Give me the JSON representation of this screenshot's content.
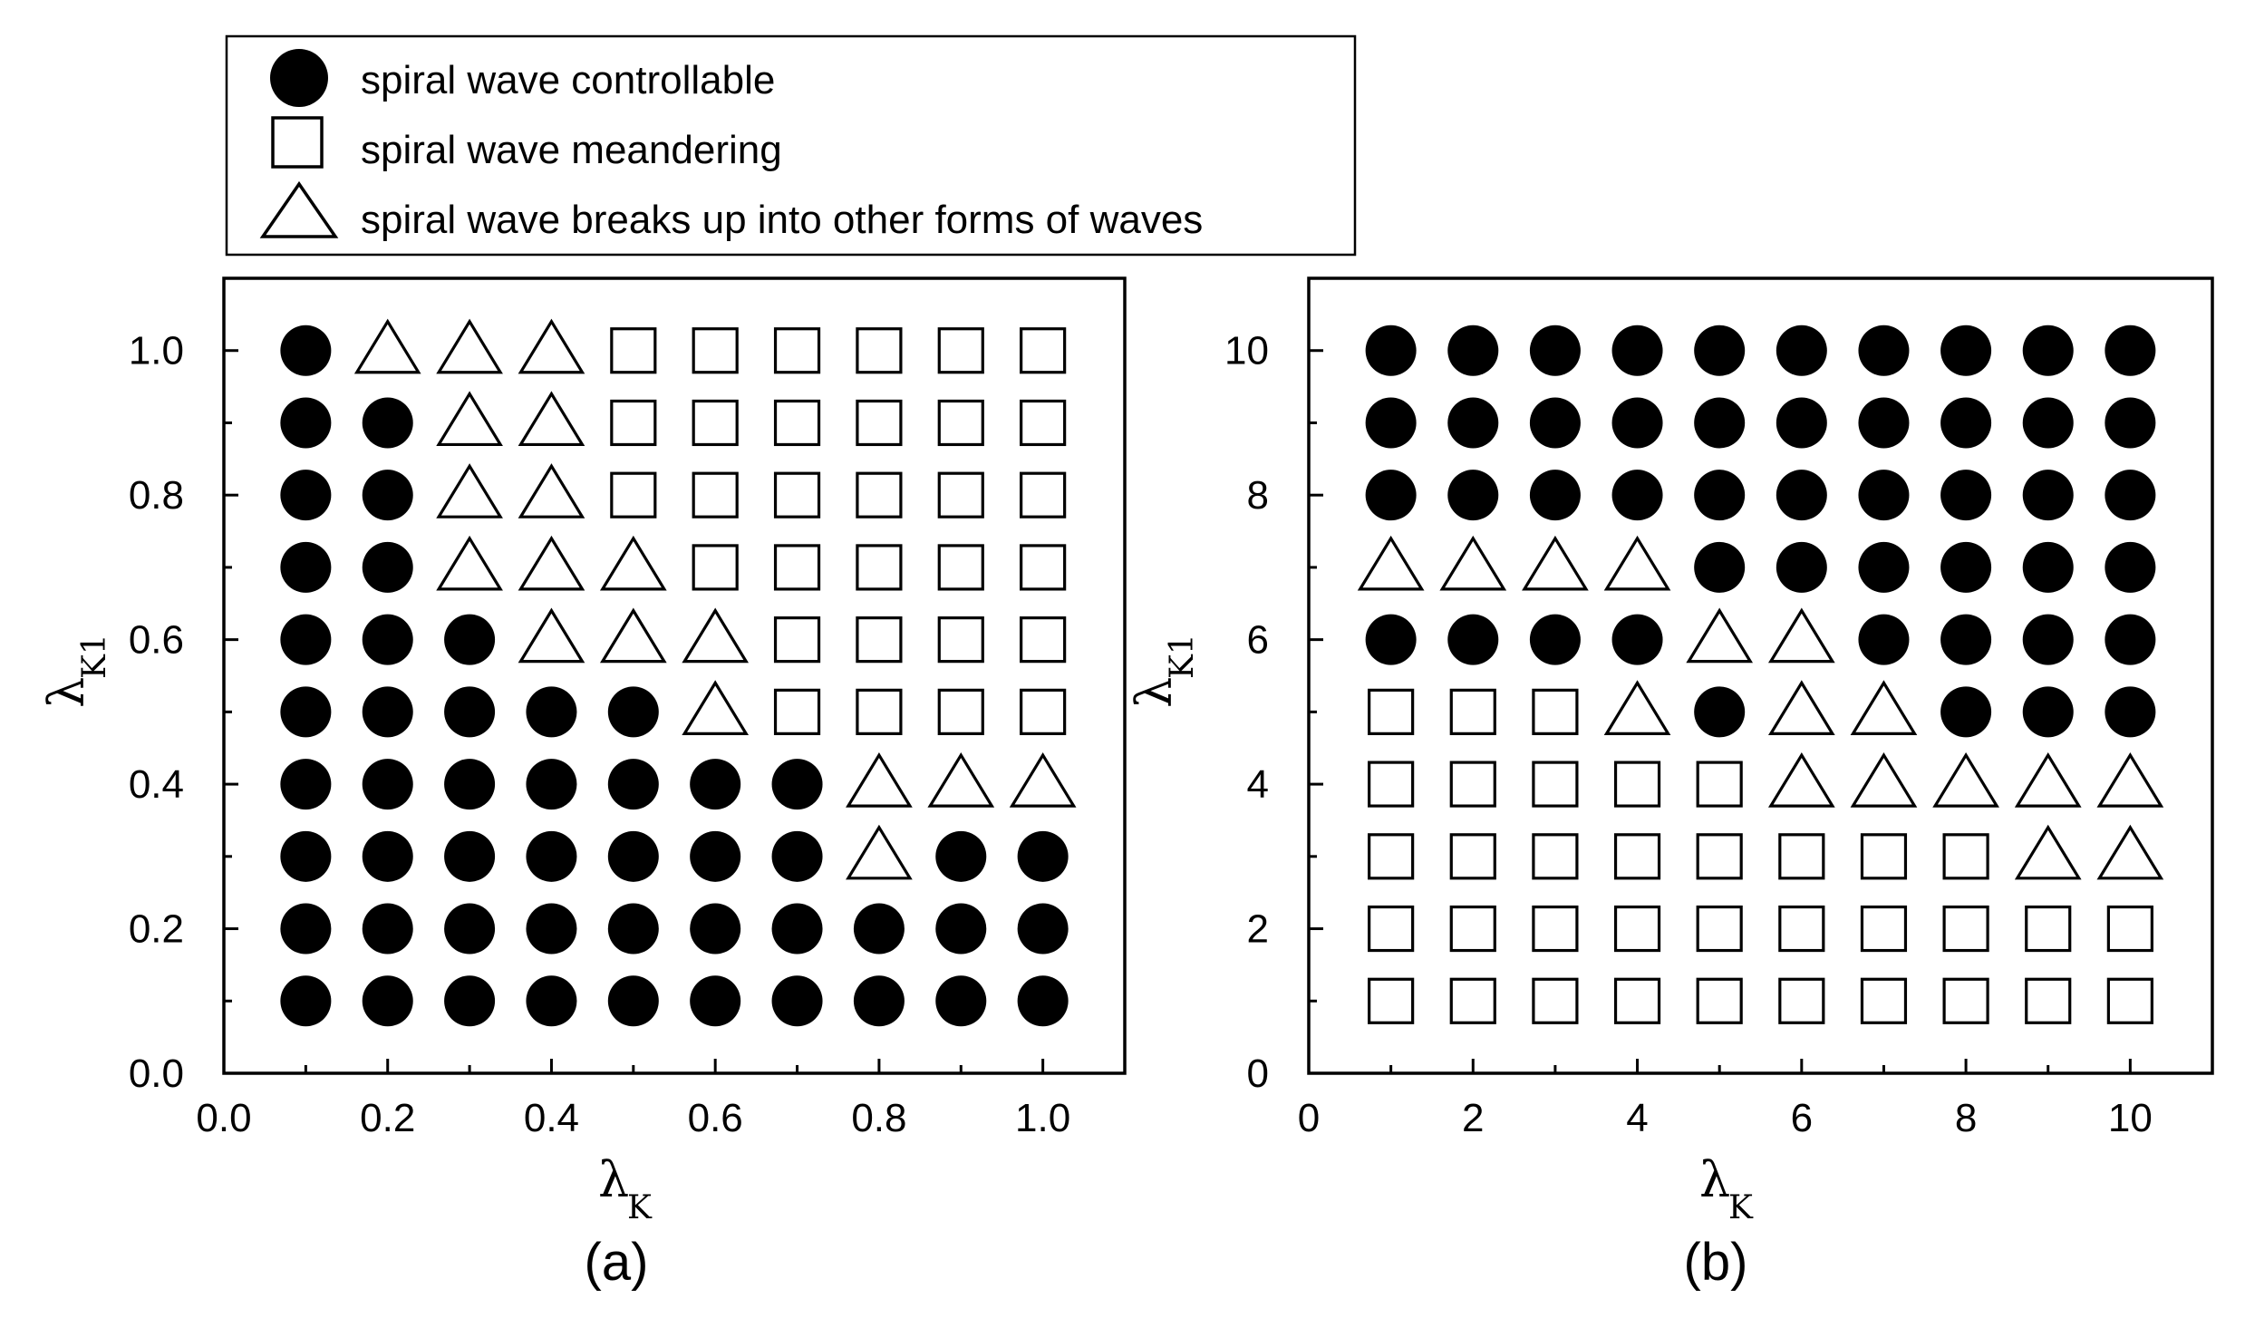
{
  "legend": {
    "items": [
      {
        "marker": "filled-circle",
        "label": "spiral wave controllable"
      },
      {
        "marker": "open-square",
        "label": "spiral wave meandering"
      },
      {
        "marker": "open-triangle",
        "label": "spiral wave breaks up into other forms of waves"
      }
    ]
  },
  "colors": {
    "marker": "#000000",
    "background": "#ffffff"
  },
  "chart_data": [
    {
      "type": "scatter",
      "panel_label": "(a)",
      "xlabel_symbol": "λ",
      "xlabel_sub": "K",
      "ylabel_symbol": "λ",
      "ylabel_sub": "K1",
      "xlim": [
        0,
        1.1
      ],
      "ylim": [
        0,
        1.1
      ],
      "xticks": [
        "0.0",
        "0.2",
        "0.4",
        "0.6",
        "0.8",
        "1.0"
      ],
      "yticks": [
        "0.0",
        "0.2",
        "0.4",
        "0.6",
        "0.8",
        "1.0"
      ],
      "tick_values": [
        0,
        0.2,
        0.4,
        0.6,
        0.8,
        1.0
      ],
      "minor_tick_values": [
        0.1,
        0.3,
        0.5,
        0.7,
        0.9
      ],
      "x": [
        0.1,
        0.2,
        0.3,
        0.4,
        0.5,
        0.6,
        0.7,
        0.8,
        0.9,
        1.0
      ],
      "y": [
        0.1,
        0.2,
        0.3,
        0.4,
        0.5,
        0.6,
        0.7,
        0.8,
        0.9,
        1.0
      ],
      "states_top_to_bottom": [
        "CTTTSSSSSS",
        "CCTTSSSSSS",
        "CCTTSSSSSS",
        "CCTTTSSSSS",
        "CCCTTTSSSS",
        "CCCCCTSSSS",
        "CCCCCCCTTT",
        "CCCCCCCTCC",
        "CCCCCCCCCC",
        "CCCCCCCCCC"
      ],
      "state_key": {
        "C": "spiral wave controllable",
        "S": "spiral wave meandering",
        "T": "spiral wave breaks up into other forms of waves"
      },
      "grid": false
    },
    {
      "type": "scatter",
      "panel_label": "(b)",
      "xlabel_symbol": "λ",
      "xlabel_sub": "K",
      "ylabel_symbol": "λ",
      "ylabel_sub": "K1",
      "xlim": [
        0,
        11
      ],
      "ylim": [
        0,
        11
      ],
      "xticks": [
        "0",
        "2",
        "4",
        "6",
        "8",
        "10"
      ],
      "yticks": [
        "0",
        "2",
        "4",
        "6",
        "8",
        "10"
      ],
      "tick_values": [
        0,
        2,
        4,
        6,
        8,
        10
      ],
      "minor_tick_values": [
        1,
        3,
        5,
        7,
        9
      ],
      "x": [
        1,
        2,
        3,
        4,
        5,
        6,
        7,
        8,
        9,
        10
      ],
      "y": [
        1,
        2,
        3,
        4,
        5,
        6,
        7,
        8,
        9,
        10
      ],
      "states_top_to_bottom": [
        "CCCCCCCCCC",
        "CCCCCCCCCC",
        "CCCCCCCCCC",
        "TTTTCCCCCC",
        "CCCCTTCCCC",
        "SSSTCTTCCC",
        "SSSSSTTTTT",
        "SSSSSSSSTT",
        "SSSSSSSSSS",
        "SSSSSSSSSS"
      ],
      "state_key": {
        "C": "spiral wave controllable",
        "S": "spiral wave meandering",
        "T": "spiral wave breaks up into other forms of waves"
      },
      "grid": false
    }
  ]
}
